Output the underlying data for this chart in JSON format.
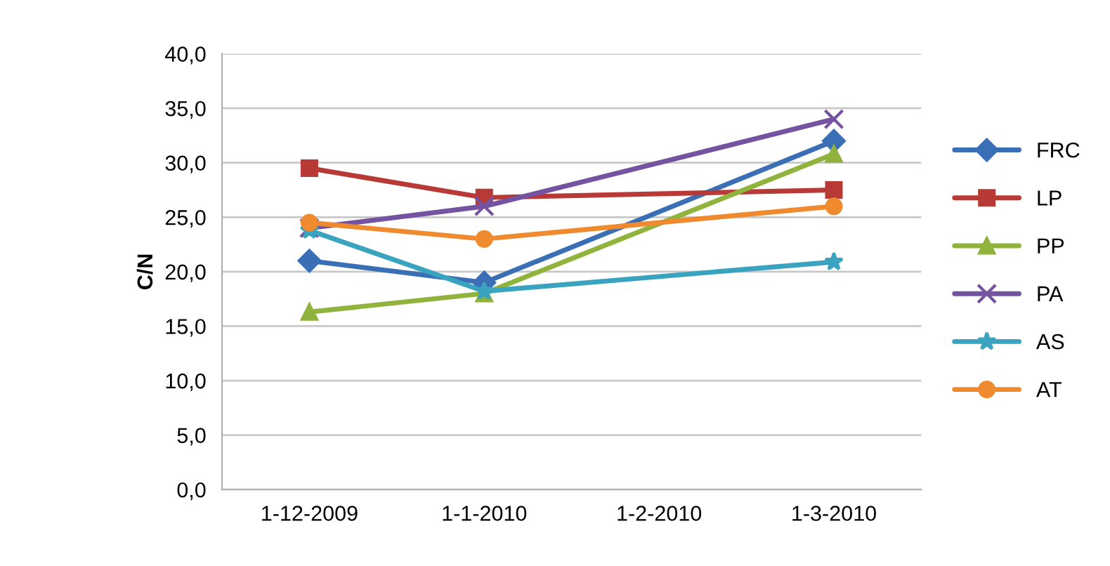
{
  "chart_data": {
    "type": "line",
    "ylabel": "C/N",
    "categories": [
      "1-12-2009",
      "1-1-2010",
      "1-2-2010",
      "1-3-2010"
    ],
    "series": [
      {
        "name": "FRC",
        "color": "#3a6fb5",
        "marker": "diamond",
        "values": [
          21.0,
          19.0,
          null,
          32.0
        ]
      },
      {
        "name": "LP",
        "color": "#b83a36",
        "marker": "square",
        "values": [
          29.5,
          26.8,
          null,
          27.5
        ]
      },
      {
        "name": "PP",
        "color": "#8fb33c",
        "marker": "triangle",
        "values": [
          16.3,
          18.0,
          null,
          30.8
        ]
      },
      {
        "name": "PA",
        "color": "#7454a0",
        "marker": "cross",
        "values": [
          24.0,
          26.0,
          null,
          34.0
        ]
      },
      {
        "name": "AS",
        "color": "#3aa3c0",
        "marker": "star",
        "values": [
          23.8,
          18.2,
          null,
          20.9
        ]
      },
      {
        "name": "AT",
        "color": "#ef8a2e",
        "marker": "circle",
        "values": [
          24.5,
          23.0,
          null,
          26.0
        ]
      }
    ],
    "ylim": [
      0,
      40
    ],
    "yticks": [
      {
        "value": 0,
        "label": "0,0"
      },
      {
        "value": 5,
        "label": "5,0"
      },
      {
        "value": 10,
        "label": "10,0"
      },
      {
        "value": 15,
        "label": "15,0"
      },
      {
        "value": 20,
        "label": "20,0"
      },
      {
        "value": 25,
        "label": "25,0"
      },
      {
        "value": 30,
        "label": "30,0"
      },
      {
        "value": 35,
        "label": "35,0"
      },
      {
        "value": 40,
        "label": "40,0"
      }
    ],
    "grid": "y",
    "legend": "right",
    "line_style": "solid"
  }
}
